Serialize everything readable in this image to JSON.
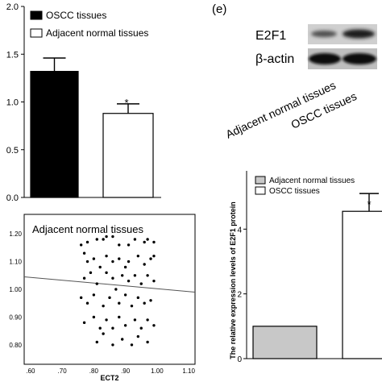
{
  "chart_data": [
    {
      "type": "bar",
      "categories": [
        "OSCC tissues",
        "Adjacent normal tissues"
      ],
      "values": [
        1.32,
        0.88
      ],
      "error": [
        0.14,
        0.1
      ],
      "ylim": [
        0,
        2.0
      ],
      "yticks": [
        "0.0",
        "0.5",
        "1.0",
        "1.5",
        "2.0"
      ],
      "yticks_values": [
        0,
        0.5,
        1.0,
        1.5,
        2.0
      ],
      "legend": [
        "OSCC tissues",
        "Adjacent normal tissues"
      ],
      "legend_position": "top",
      "fill_colors": [
        "#000000",
        "#ffffff"
      ],
      "annotation": "*"
    },
    {
      "type": "blot",
      "panel_label": "(e)",
      "bands": [
        "E2F1",
        "β-actin"
      ],
      "lanes": [
        "Adjacent normal tissues",
        "OSCC  tissues"
      ]
    },
    {
      "type": "scatter",
      "title": "Adjacent normal tissues",
      "xlabel": "ECT2",
      "xticks": [
        ".60",
        ".70",
        ".80",
        ".90",
        "1.00",
        "1.10"
      ],
      "xticks_values": [
        0.6,
        0.7,
        0.8,
        0.9,
        1.0,
        1.1
      ],
      "yticks": [
        "0.80",
        "0.90",
        "1.00",
        "1.10",
        "1.20"
      ],
      "yticks_values": [
        0.8,
        0.9,
        1.0,
        1.1,
        1.2
      ],
      "xlim": [
        0.58,
        1.12
      ],
      "ylim": [
        0.73,
        1.27
      ],
      "fit_line": {
        "x": [
          0.58,
          1.12
        ],
        "y": [
          1.045,
          0.99
        ]
      },
      "points": [
        [
          0.76,
          1.16
        ],
        [
          0.77,
          1.13
        ],
        [
          0.78,
          1.17
        ],
        [
          0.81,
          1.18
        ],
        [
          0.83,
          1.18
        ],
        [
          0.84,
          1.19
        ],
        [
          0.86,
          1.19
        ],
        [
          0.88,
          1.16
        ],
        [
          0.91,
          1.16
        ],
        [
          0.93,
          1.18
        ],
        [
          0.96,
          1.17
        ],
        [
          0.97,
          1.18
        ],
        [
          0.99,
          1.17
        ],
        [
          0.78,
          1.1
        ],
        [
          0.8,
          1.11
        ],
        [
          0.82,
          1.08
        ],
        [
          0.84,
          1.12
        ],
        [
          0.86,
          1.1
        ],
        [
          0.88,
          1.11
        ],
        [
          0.9,
          1.08
        ],
        [
          0.91,
          1.1
        ],
        [
          0.94,
          1.12
        ],
        [
          0.96,
          1.09
        ],
        [
          0.98,
          1.11
        ],
        [
          0.99,
          1.12
        ],
        [
          0.77,
          1.04
        ],
        [
          0.79,
          1.06
        ],
        [
          0.81,
          1.02
        ],
        [
          0.84,
          1.06
        ],
        [
          0.86,
          1.04
        ],
        [
          0.87,
          1.0
        ],
        [
          0.89,
          1.05
        ],
        [
          0.91,
          1.03
        ],
        [
          0.93,
          1.05
        ],
        [
          0.95,
          1.02
        ],
        [
          0.97,
          1.05
        ],
        [
          0.99,
          1.03
        ],
        [
          0.76,
          0.97
        ],
        [
          0.78,
          0.95
        ],
        [
          0.8,
          0.98
        ],
        [
          0.83,
          0.94
        ],
        [
          0.85,
          0.97
        ],
        [
          0.88,
          0.95
        ],
        [
          0.9,
          0.98
        ],
        [
          0.92,
          0.94
        ],
        [
          0.94,
          0.97
        ],
        [
          0.96,
          0.95
        ],
        [
          0.98,
          0.96
        ],
        [
          0.77,
          0.88
        ],
        [
          0.8,
          0.9
        ],
        [
          0.82,
          0.86
        ],
        [
          0.84,
          0.89
        ],
        [
          0.86,
          0.86
        ],
        [
          0.88,
          0.9
        ],
        [
          0.9,
          0.87
        ],
        [
          0.93,
          0.89
        ],
        [
          0.95,
          0.86
        ],
        [
          0.97,
          0.89
        ],
        [
          0.99,
          0.87
        ],
        [
          0.81,
          0.81
        ],
        [
          0.83,
          0.84
        ],
        [
          0.86,
          0.8
        ],
        [
          0.89,
          0.82
        ],
        [
          0.92,
          0.8
        ],
        [
          0.94,
          0.83
        ],
        [
          0.97,
          0.81
        ]
      ]
    },
    {
      "type": "bar",
      "ylabel": "The relative expression levels of E2F1  protein",
      "categories": [
        "Adjacent normal tissues",
        "OSCC tissues"
      ],
      "values": [
        1.0,
        4.55
      ],
      "error": [
        0,
        0.55
      ],
      "ylim": [
        0,
        5.8
      ],
      "yticks": [
        "0",
        "2",
        "4"
      ],
      "yticks_values": [
        0,
        2,
        4
      ],
      "legend": [
        "Adjacent normal tissues",
        "OSCC tissues"
      ],
      "legend_position": "top-left",
      "fill_colors": [
        "#c8c8c8",
        "#ffffff"
      ],
      "annotation": "*"
    }
  ]
}
